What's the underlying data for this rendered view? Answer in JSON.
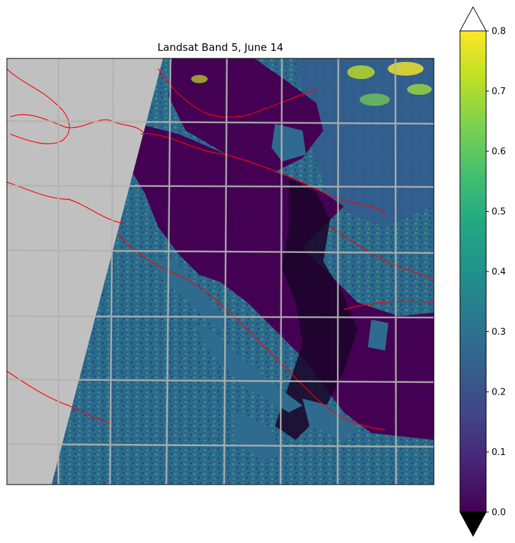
{
  "chart_data": {
    "type": "heatmap",
    "title": "Landsat Band 5, June 14",
    "colormap": "viridis",
    "colorbar": {
      "vmin": 0.0,
      "vmax": 0.8,
      "ticks": [
        "0.0",
        "0.1",
        "0.2",
        "0.3",
        "0.4",
        "0.5",
        "0.6",
        "0.7",
        "0.8"
      ],
      "extend": "both",
      "under_color": "#000000",
      "over_color": "#ffffff",
      "placement": "right"
    },
    "overlays": {
      "coastline_color": "#ff0000",
      "no_data_color": "#c0c0c0",
      "graticule_color": "#b3b3b3",
      "grid": true
    }
  }
}
